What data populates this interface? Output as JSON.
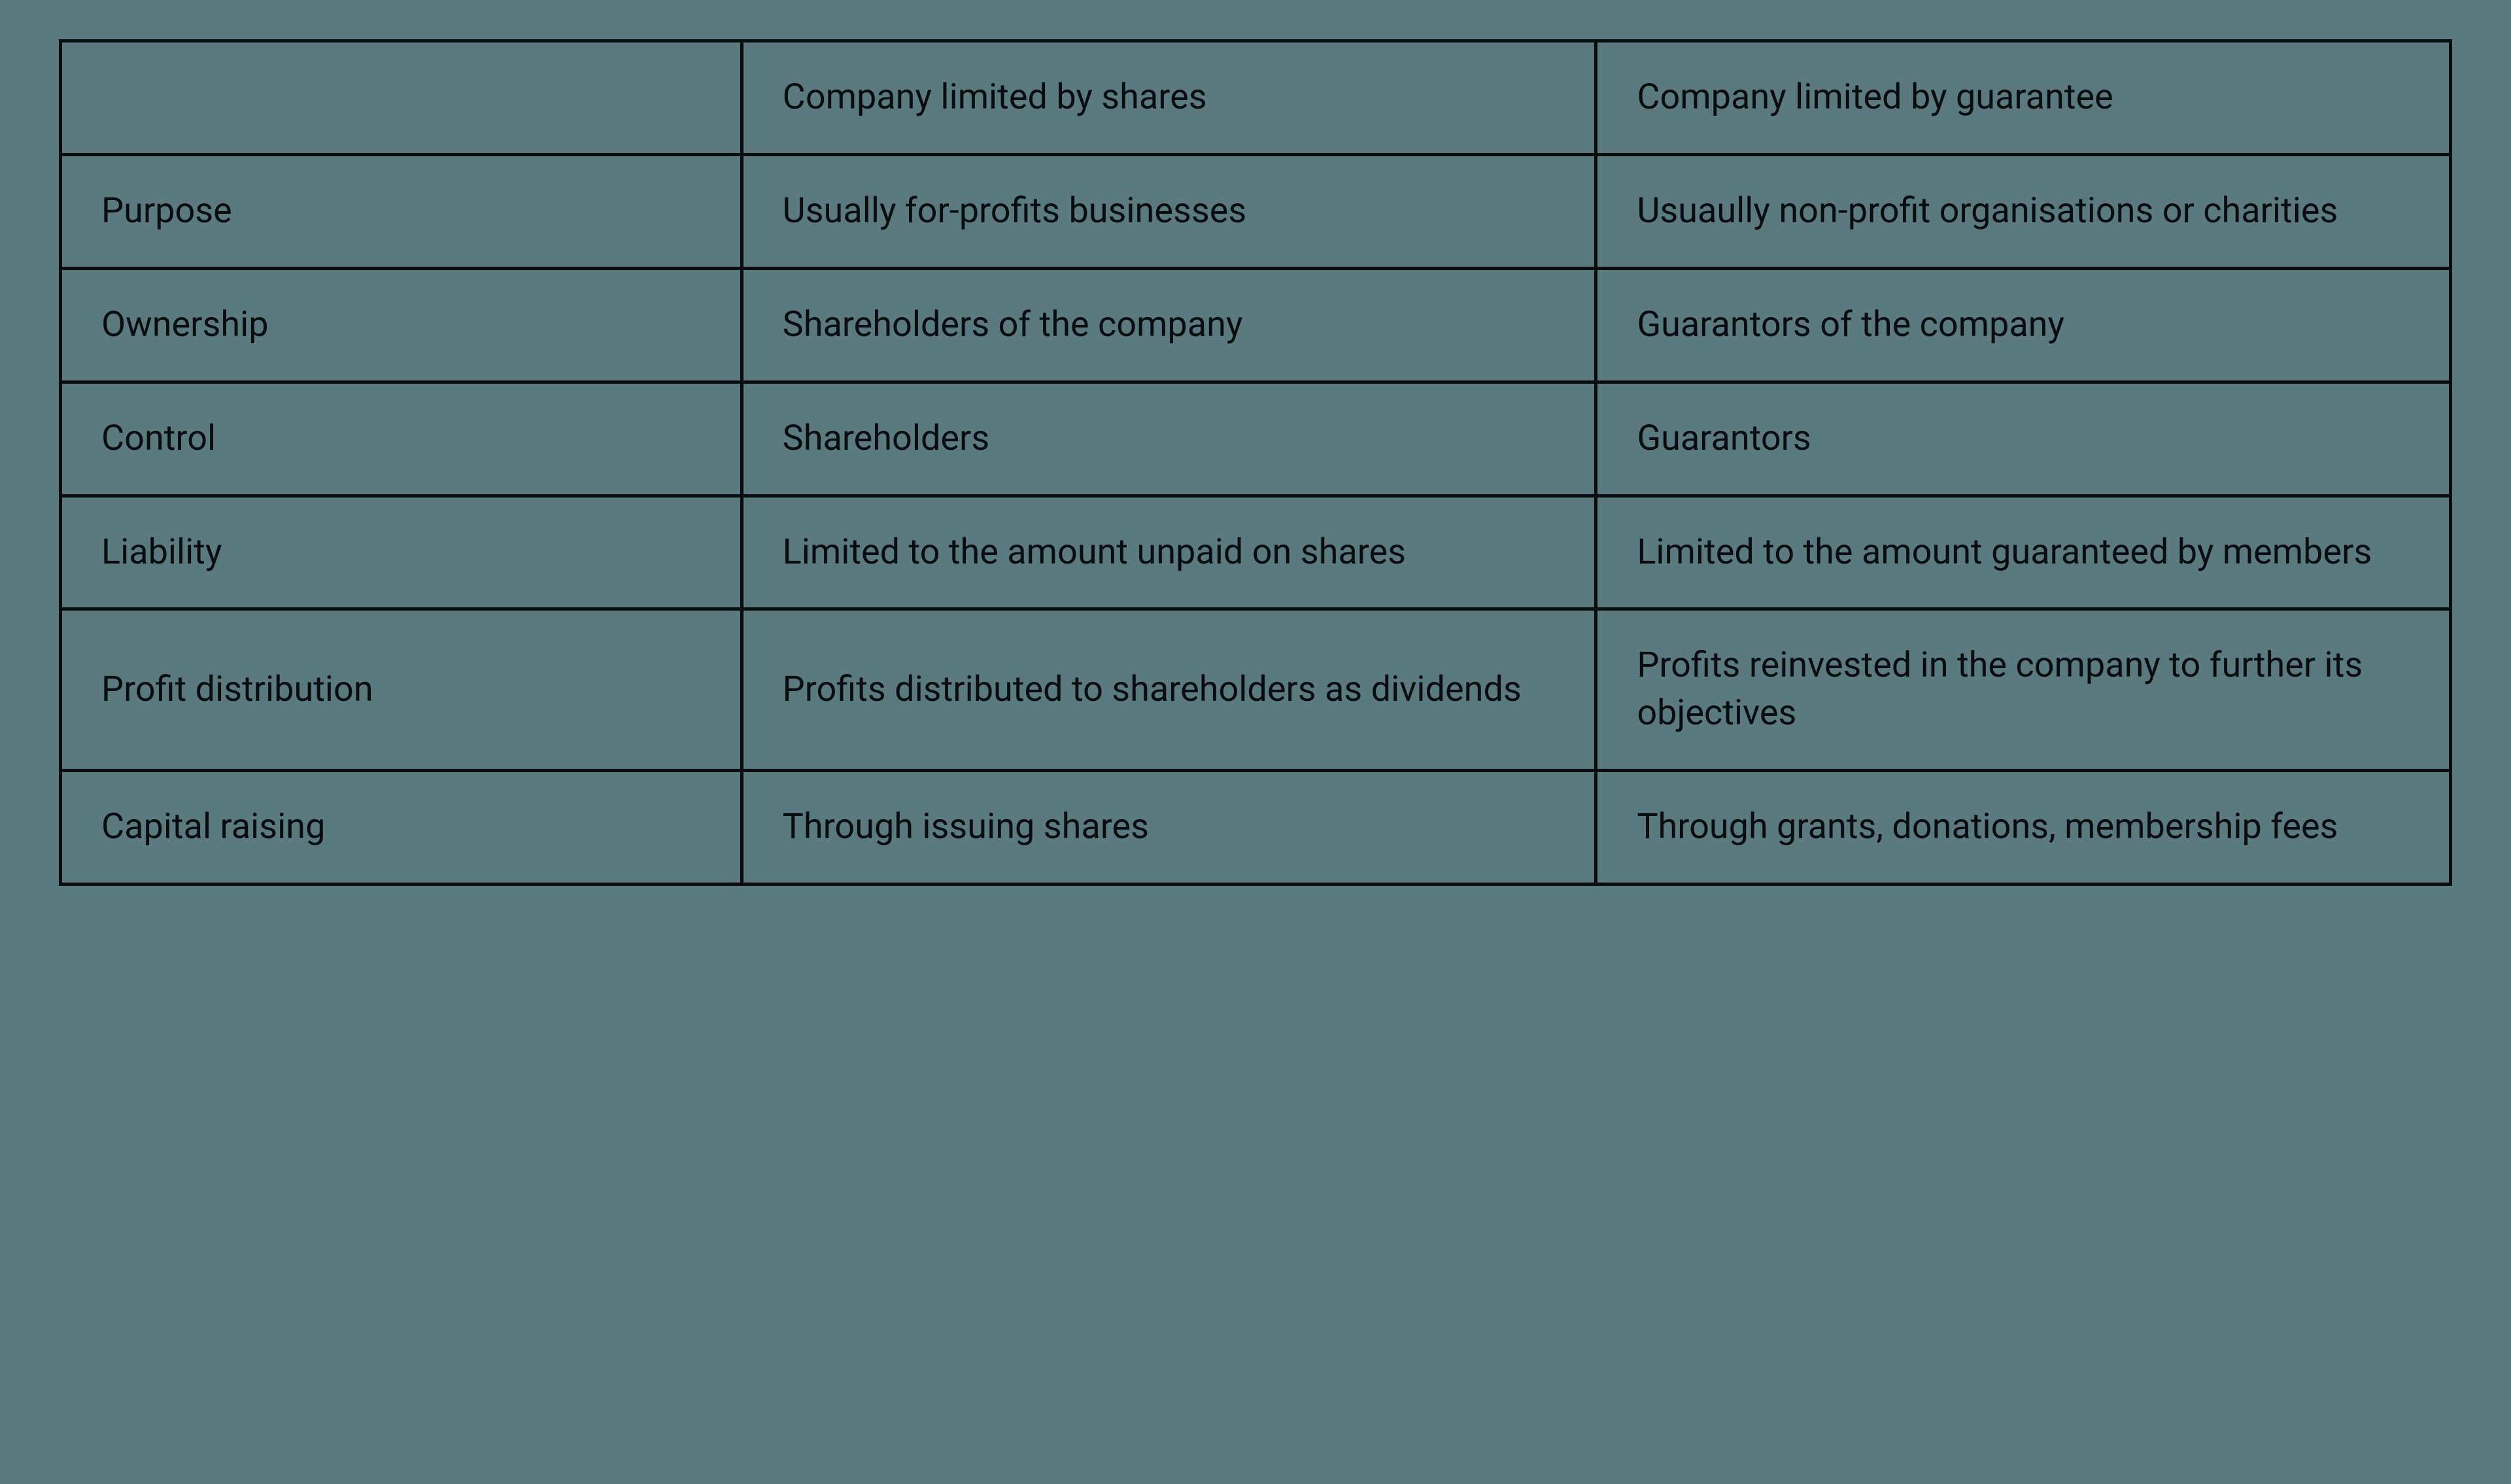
{
  "table": {
    "background_color": "#5a7a7f",
    "border_color": "#0a0d0f",
    "text_color": "#0a0d0f",
    "border_width": 5,
    "font_size": 54,
    "cell_padding_y": 48,
    "cell_padding_x": 60,
    "column_widths_pct": [
      28.5,
      35.75,
      35.75
    ],
    "columns": [
      "",
      "Company limited by shares",
      "Company limited by guarantee"
    ],
    "rows": [
      {
        "label": "Purpose",
        "shares": "Usually for-profits businesses",
        "guarantee": "Usuaully non-profit organisations or charities"
      },
      {
        "label": "Ownership",
        "shares": "Shareholders of the company",
        "guarantee": "Guarantors of the company"
      },
      {
        "label": "Control",
        "shares": "Shareholders",
        "guarantee": "Guarantors"
      },
      {
        "label": "Liability",
        "shares": "Limited to the amount unpaid on shares",
        "guarantee": "Limited to the amount guaranteed by members"
      },
      {
        "label": "Profit distribution",
        "shares": "Profits distributed to shareholders as dividends",
        "guarantee": "Profits reinvested in the company to further its objectives"
      },
      {
        "label": "Capital raising",
        "shares": "Through issuing shares",
        "guarantee": "Through grants, donations, membership fees"
      }
    ]
  }
}
